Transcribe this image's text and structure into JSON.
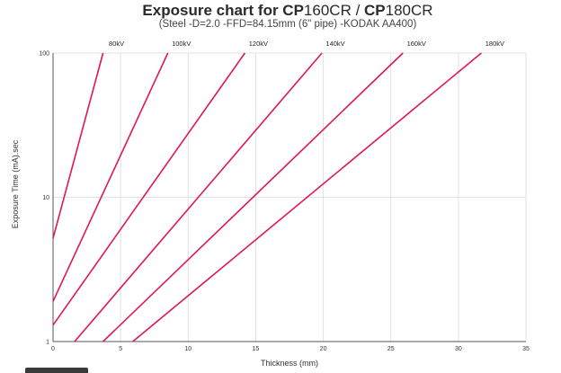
{
  "chart_data": {
    "type": "line",
    "title_bold_1": "Exposure chart for CP",
    "title_light_1": "160CR / ",
    "title_bold_2": "CP",
    "title_light_2": "180CR",
    "subtitle": "(Steel -D=2.0 -FFD=84.15mm (6\" pipe) -KODAK AA400)",
    "xlabel": "Thickness (mm)",
    "ylabel": "Exposure Time (mA).sec",
    "xlim": [
      0,
      35
    ],
    "ylim": [
      1,
      100
    ],
    "yscale": "log",
    "x_ticks": [
      0,
      5,
      10,
      15,
      20,
      25,
      30,
      35
    ],
    "y_ticks": [
      1,
      10,
      100
    ],
    "grid": true,
    "line_color": "#e0155a",
    "series": [
      {
        "name": "80kV",
        "x": [
          0,
          3.7
        ],
        "y": [
          5.2,
          100
        ]
      },
      {
        "name": "100kV",
        "x": [
          0,
          8.5
        ],
        "y": [
          1.9,
          100
        ]
      },
      {
        "name": "120kV",
        "x": [
          0,
          14.2
        ],
        "y": [
          1.3,
          100
        ]
      },
      {
        "name": "140kV",
        "x": [
          1.6,
          19.9
        ],
        "y": [
          1,
          100
        ]
      },
      {
        "name": "160kV",
        "x": [
          3.7,
          25.9
        ],
        "y": [
          1,
          100
        ]
      },
      {
        "name": "180kV",
        "x": [
          5.9,
          31.7
        ],
        "y": [
          1,
          100
        ]
      }
    ]
  }
}
